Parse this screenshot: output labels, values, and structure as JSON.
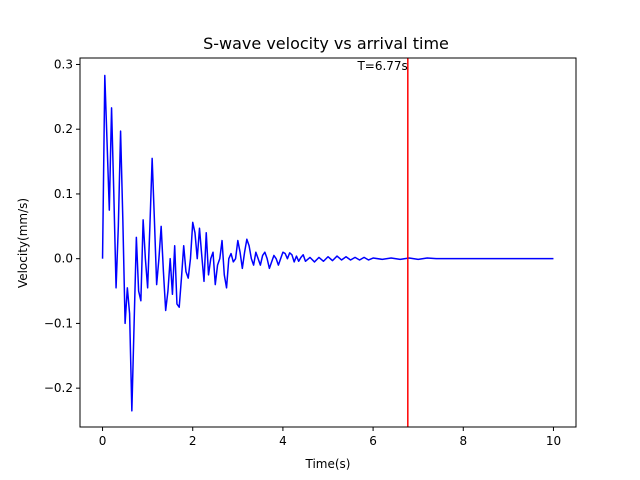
{
  "chart_data": {
    "type": "line",
    "title": "S-wave velocity vs arrival time",
    "xlabel": "Time(s)",
    "ylabel": "Velocity(mm/s)",
    "xlim": [
      -0.5,
      10.5
    ],
    "ylim": [
      -0.26,
      0.31
    ],
    "xticks": [
      0,
      2,
      4,
      6,
      8,
      10
    ],
    "yticks": [
      -0.2,
      -0.1,
      0.0,
      0.1,
      0.2,
      0.3
    ],
    "xtick_labels": [
      "0",
      "2",
      "4",
      "6",
      "8",
      "10"
    ],
    "ytick_labels": [
      "−0.2",
      "−0.1",
      "0.0",
      "0.1",
      "0.2",
      "0.3"
    ],
    "grid": false,
    "series": [
      {
        "color": "#0000ff",
        "x": [
          0.0,
          0.05,
          0.1,
          0.15,
          0.2,
          0.25,
          0.3,
          0.35,
          0.4,
          0.45,
          0.5,
          0.55,
          0.6,
          0.65,
          0.7,
          0.75,
          0.8,
          0.85,
          0.9,
          0.95,
          1.0,
          1.05,
          1.1,
          1.15,
          1.2,
          1.25,
          1.3,
          1.35,
          1.4,
          1.45,
          1.5,
          1.55,
          1.6,
          1.65,
          1.7,
          1.75,
          1.8,
          1.85,
          1.9,
          1.95,
          2.0,
          2.05,
          2.1,
          2.15,
          2.2,
          2.25,
          2.3,
          2.35,
          2.4,
          2.45,
          2.5,
          2.55,
          2.6,
          2.65,
          2.7,
          2.75,
          2.8,
          2.85,
          2.9,
          2.95,
          3.0,
          3.05,
          3.1,
          3.15,
          3.2,
          3.25,
          3.3,
          3.35,
          3.4,
          3.45,
          3.5,
          3.55,
          3.6,
          3.65,
          3.7,
          3.75,
          3.8,
          3.85,
          3.9,
          3.95,
          4.0,
          4.05,
          4.1,
          4.15,
          4.2,
          4.25,
          4.3,
          4.35,
          4.4,
          4.45,
          4.5,
          4.6,
          4.7,
          4.8,
          4.9,
          5.0,
          5.1,
          5.2,
          5.3,
          5.4,
          5.5,
          5.6,
          5.7,
          5.8,
          5.9,
          6.0,
          6.2,
          6.4,
          6.6,
          6.8,
          7.0,
          7.2,
          7.4,
          7.6,
          7.8,
          8.0,
          8.5,
          9.0,
          9.5,
          10.0
        ],
        "y": [
          0.0,
          0.283,
          0.18,
          0.075,
          0.233,
          0.1,
          -0.045,
          0.05,
          0.197,
          0.06,
          -0.1,
          -0.045,
          -0.085,
          -0.235,
          -0.1,
          0.033,
          -0.05,
          -0.065,
          0.06,
          0.0,
          -0.045,
          0.05,
          0.155,
          0.06,
          -0.04,
          0.0,
          0.05,
          -0.02,
          -0.08,
          -0.05,
          0.0,
          -0.055,
          0.02,
          -0.07,
          -0.075,
          -0.03,
          0.02,
          -0.02,
          -0.03,
          0.0,
          0.056,
          0.04,
          0.0,
          0.047,
          0.005,
          -0.035,
          0.04,
          -0.025,
          0.0,
          0.01,
          -0.04,
          -0.01,
          0.0,
          0.028,
          -0.025,
          -0.045,
          0.0,
          0.008,
          -0.005,
          0.0,
          0.028,
          0.01,
          -0.015,
          0.01,
          0.03,
          0.02,
          0.0,
          -0.01,
          0.01,
          0.0,
          -0.01,
          0.005,
          0.01,
          0.0,
          -0.015,
          -0.005,
          0.005,
          0.0,
          -0.01,
          0.0,
          0.01,
          0.008,
          0.0,
          0.009,
          0.006,
          -0.005,
          0.004,
          -0.004,
          0.002,
          0.006,
          -0.004,
          0.002,
          -0.005,
          0.002,
          -0.004,
          0.003,
          -0.003,
          0.004,
          -0.002,
          0.003,
          -0.002,
          0.002,
          -0.002,
          0.002,
          -0.002,
          0.001,
          -0.001,
          0.001,
          -0.001,
          0.001,
          -0.001,
          0.001,
          0.0,
          0.0,
          0.0,
          0.0,
          0.0,
          0.0,
          0.0,
          0.0
        ]
      }
    ],
    "vline": {
      "x": 6.77,
      "color": "#ff0000",
      "label": "T=6.77s"
    }
  }
}
